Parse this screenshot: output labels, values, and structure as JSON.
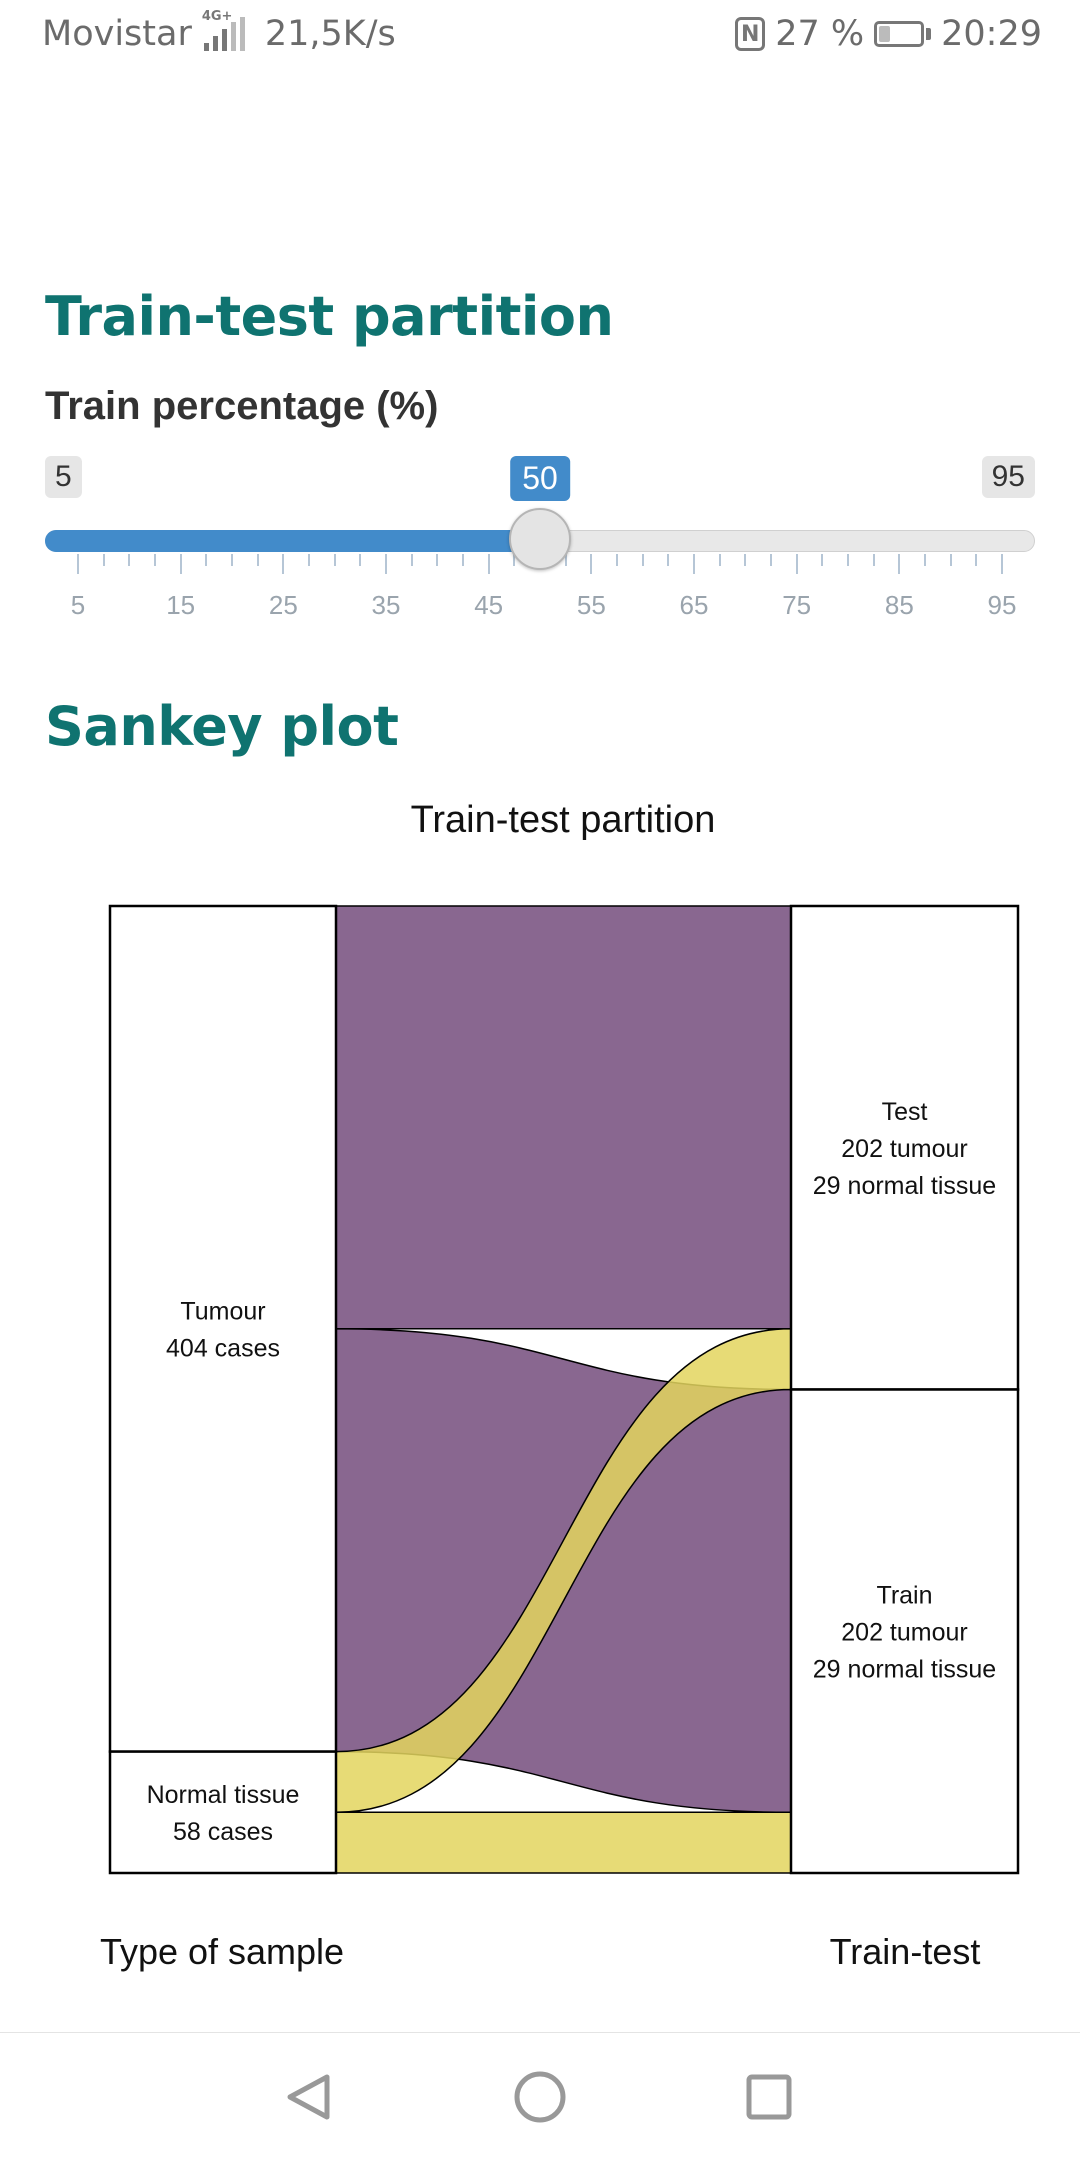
{
  "status_bar": {
    "carrier": "Movistar",
    "network_type": "4G+",
    "data_speed": "21,5K/s",
    "nfc": "N",
    "battery_percent": "27 %",
    "battery_level": 0.27,
    "time": "20:29"
  },
  "partition_section": {
    "title": "Train-test partition",
    "slider": {
      "label": "Train percentage (%)",
      "min_label": "5",
      "max_label": "95",
      "value_label": "50",
      "min": 5,
      "max": 95,
      "value": 50,
      "tick_labels": [
        "5",
        "15",
        "25",
        "35",
        "45",
        "55",
        "65",
        "75",
        "85",
        "95"
      ],
      "color": "#428bca"
    }
  },
  "sankey_section": {
    "title": "Sankey plot",
    "chart_data": {
      "type": "sankey",
      "title": "Train-test partition",
      "left_axis_label": "Type of sample",
      "right_axis_label": "Train-test",
      "left_nodes": [
        {
          "name": "Tumour",
          "label": "404 cases",
          "value": 404
        },
        {
          "name": "Normal tissue",
          "label": "58 cases",
          "value": 58
        }
      ],
      "right_nodes": [
        {
          "name": "Test",
          "lines": [
            "202 tumour",
            "29 normal tissue"
          ],
          "value": 231
        },
        {
          "name": "Train",
          "lines": [
            "202 tumour",
            "29 normal tissue"
          ],
          "value": 231
        }
      ],
      "flows": [
        {
          "from": "Tumour",
          "to": "Test",
          "value": 202,
          "color": "#744c7c"
        },
        {
          "from": "Tumour",
          "to": "Train",
          "value": 202,
          "color": "#744c7c"
        },
        {
          "from": "Normal tissue",
          "to": "Test",
          "value": 29,
          "color": "#e3d55e"
        },
        {
          "from": "Normal tissue",
          "to": "Train",
          "value": 29,
          "color": "#e3d55e"
        }
      ]
    }
  },
  "nav_bar": {
    "back_icon": "triangle-back",
    "home_icon": "circle-home",
    "recents_icon": "square-recents"
  }
}
